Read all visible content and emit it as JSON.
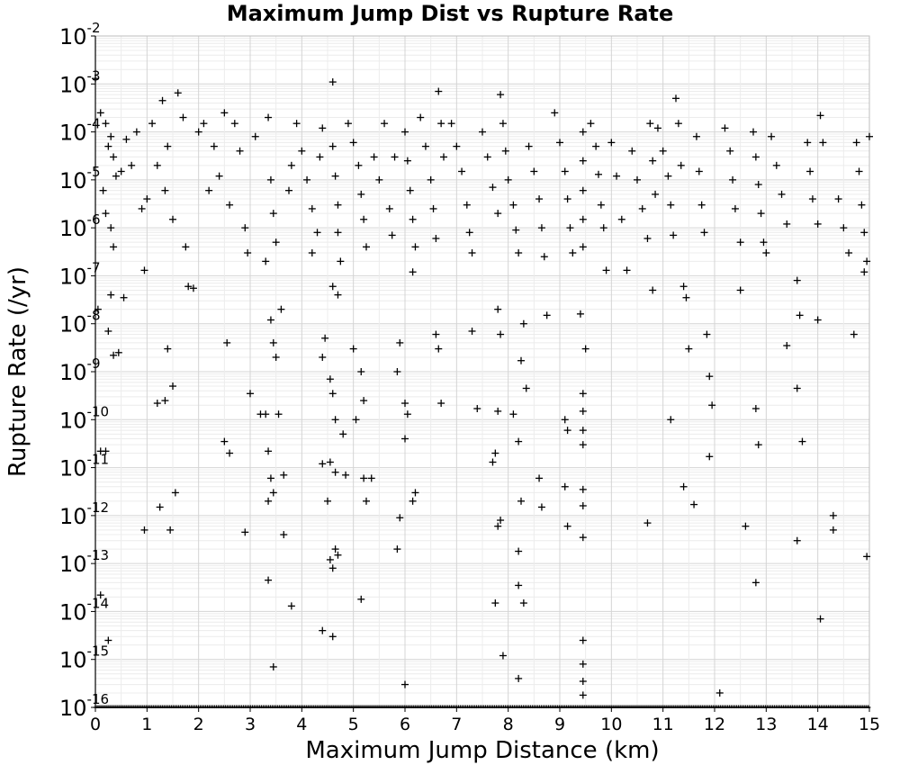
{
  "chart_data": {
    "type": "scatter",
    "title": "Maximum Jump Dist vs Rupture Rate",
    "xlabel": "Maximum Jump Distance (km)",
    "ylabel": "Rupture Rate (/yr)",
    "xlim": [
      0,
      15
    ],
    "ylim": [
      1e-16,
      0.01
    ],
    "yscale": "log",
    "grid": true,
    "marker": "plus",
    "marker_color": "#000000",
    "xticks": [
      "0",
      "1",
      "2",
      "3",
      "4",
      "5",
      "6",
      "7",
      "8",
      "9",
      "10",
      "11",
      "12",
      "13",
      "14",
      "15"
    ],
    "yticks": [
      {
        "base": "10",
        "exp": "-2"
      },
      {
        "base": "10",
        "exp": "-3"
      },
      {
        "base": "10",
        "exp": "-4"
      },
      {
        "base": "10",
        "exp": "-5"
      },
      {
        "base": "10",
        "exp": "-6"
      },
      {
        "base": "10",
        "exp": "-7"
      },
      {
        "base": "10",
        "exp": "-8"
      },
      {
        "base": "10",
        "exp": "-9"
      },
      {
        "base": "10",
        "exp": "-10"
      },
      {
        "base": "10",
        "exp": "-11"
      },
      {
        "base": "10",
        "exp": "-12"
      },
      {
        "base": "10",
        "exp": "-13"
      },
      {
        "base": "10",
        "exp": "-14"
      },
      {
        "base": "10",
        "exp": "-15"
      },
      {
        "base": "10",
        "exp": "-16"
      }
    ],
    "points": [
      [
        0.0,
        0.0013
      ],
      [
        0.1,
        0.00025
      ],
      [
        0.2,
        0.00015
      ],
      [
        0.25,
        5e-05
      ],
      [
        0.3,
        8e-05
      ],
      [
        0.35,
        3e-05
      ],
      [
        0.4,
        1.2e-05
      ],
      [
        0.15,
        6e-06
      ],
      [
        0.2,
        2e-06
      ],
      [
        0.3,
        1e-06
      ],
      [
        0.35,
        4e-07
      ],
      [
        0.05,
        2e-08
      ],
      [
        0.1,
        2.2e-11
      ],
      [
        0.2,
        2.2e-11
      ],
      [
        0.25,
        7e-09
      ],
      [
        0.35,
        2.2e-09
      ],
      [
        0.45,
        2.5e-09
      ],
      [
        0.3,
        4e-08
      ],
      [
        0.55,
        3.5e-08
      ],
      [
        0.1,
        2.2e-14
      ],
      [
        0.25,
        2.5e-15
      ],
      [
        0.5,
        1.5e-05
      ],
      [
        0.6,
        7e-05
      ],
      [
        0.7,
        2e-05
      ],
      [
        0.8,
        0.0001
      ],
      [
        0.9,
        2.5e-06
      ],
      [
        0.95,
        1.3e-07
      ],
      [
        1.0,
        4e-06
      ],
      [
        1.1,
        0.00015
      ],
      [
        1.2,
        2e-05
      ],
      [
        1.3,
        0.00045
      ],
      [
        1.35,
        6e-06
      ],
      [
        1.4,
        5e-05
      ],
      [
        1.5,
        1.5e-06
      ],
      [
        1.6,
        0.00065
      ],
      [
        1.7,
        0.0002
      ],
      [
        1.75,
        4e-07
      ],
      [
        1.8,
        6e-08
      ],
      [
        1.9,
        5.5e-08
      ],
      [
        1.2,
        2.2e-10
      ],
      [
        1.35,
        2.5e-10
      ],
      [
        1.5,
        5e-10
      ],
      [
        1.4,
        3e-09
      ],
      [
        1.25,
        1.5e-12
      ],
      [
        1.45,
        5e-13
      ],
      [
        1.55,
        3e-12
      ],
      [
        0.95,
        5e-13
      ],
      [
        2.0,
        0.0001
      ],
      [
        2.1,
        0.00015
      ],
      [
        2.2,
        6e-06
      ],
      [
        2.3,
        5e-05
      ],
      [
        2.4,
        1.2e-05
      ],
      [
        2.5,
        0.00025
      ],
      [
        2.6,
        3e-06
      ],
      [
        2.7,
        0.00015
      ],
      [
        2.8,
        4e-05
      ],
      [
        2.9,
        1e-06
      ],
      [
        2.95,
        3e-07
      ],
      [
        2.55,
        4e-09
      ],
      [
        2.5,
        3.5e-11
      ],
      [
        2.6,
        2e-11
      ],
      [
        2.9,
        4.5e-13
      ],
      [
        3.0,
        3.5e-10
      ],
      [
        3.1,
        8e-05
      ],
      [
        3.2,
        1.3e-10
      ],
      [
        3.3,
        1.3e-10
      ],
      [
        3.35,
        0.0002
      ],
      [
        3.4,
        1e-05
      ],
      [
        3.45,
        2e-06
      ],
      [
        3.5,
        5e-07
      ],
      [
        3.3,
        2e-07
      ],
      [
        3.4,
        1.2e-08
      ],
      [
        3.45,
        4e-09
      ],
      [
        3.5,
        2e-09
      ],
      [
        3.55,
        1.3e-10
      ],
      [
        3.35,
        2.2e-11
      ],
      [
        3.4,
        6e-12
      ],
      [
        3.45,
        3e-12
      ],
      [
        3.35,
        2e-12
      ],
      [
        3.6,
        2e-08
      ],
      [
        3.65,
        7e-12
      ],
      [
        3.65,
        4e-13
      ],
      [
        3.35,
        4.5e-14
      ],
      [
        3.45,
        7e-16
      ],
      [
        3.8,
        1.3e-14
      ],
      [
        3.75,
        6e-06
      ],
      [
        3.8,
        2e-05
      ],
      [
        3.9,
        0.00015
      ],
      [
        4.0,
        4e-05
      ],
      [
        4.1,
        1e-05
      ],
      [
        4.2,
        2.5e-06
      ],
      [
        4.3,
        8e-07
      ],
      [
        4.2,
        3e-07
      ],
      [
        4.35,
        3e-05
      ],
      [
        4.4,
        0.00012
      ],
      [
        4.45,
        5e-09
      ],
      [
        4.4,
        2e-09
      ],
      [
        4.4,
        1.2e-11
      ],
      [
        4.55,
        1.3e-11
      ],
      [
        4.5,
        2e-12
      ],
      [
        4.55,
        1.2e-13
      ],
      [
        4.6,
        8e-14
      ],
      [
        4.6,
        3e-15
      ],
      [
        4.4,
        4e-15
      ],
      [
        4.6,
        0.0011
      ],
      [
        4.6,
        5e-05
      ],
      [
        4.65,
        1.2e-05
      ],
      [
        4.7,
        3e-06
      ],
      [
        4.7,
        8e-07
      ],
      [
        4.75,
        2e-07
      ],
      [
        4.6,
        6e-08
      ],
      [
        4.7,
        4e-08
      ],
      [
        4.55,
        7e-10
      ],
      [
        4.6,
        3.5e-10
      ],
      [
        4.65,
        1e-10
      ],
      [
        4.8,
        5e-11
      ],
      [
        4.65,
        8e-12
      ],
      [
        4.85,
        7e-12
      ],
      [
        4.65,
        2e-13
      ],
      [
        4.7,
        1.5e-13
      ],
      [
        4.9,
        0.00015
      ],
      [
        5.0,
        6e-05
      ],
      [
        5.1,
        2e-05
      ],
      [
        5.15,
        5e-06
      ],
      [
        5.2,
        1.5e-06
      ],
      [
        5.25,
        4e-07
      ],
      [
        5.0,
        3e-09
      ],
      [
        5.15,
        1e-09
      ],
      [
        5.2,
        2.5e-10
      ],
      [
        5.05,
        1e-10
      ],
      [
        5.2,
        6e-12
      ],
      [
        5.25,
        2e-12
      ],
      [
        5.35,
        6e-12
      ],
      [
        5.15,
        1.8e-14
      ],
      [
        5.4,
        3e-05
      ],
      [
        5.5,
        1e-05
      ],
      [
        5.6,
        0.00015
      ],
      [
        5.7,
        2.5e-06
      ],
      [
        5.75,
        7e-07
      ],
      [
        5.8,
        3e-05
      ],
      [
        5.9,
        4e-09
      ],
      [
        5.85,
        1e-09
      ],
      [
        5.9,
        9e-13
      ],
      [
        5.85,
        2e-13
      ],
      [
        6.0,
        0.0001
      ],
      [
        6.05,
        2.5e-05
      ],
      [
        6.1,
        6e-06
      ],
      [
        6.15,
        1.5e-06
      ],
      [
        6.2,
        4e-07
      ],
      [
        6.15,
        1.2e-07
      ],
      [
        6.0,
        2.2e-10
      ],
      [
        6.05,
        1.3e-10
      ],
      [
        6.0,
        4e-11
      ],
      [
        6.2,
        3e-12
      ],
      [
        6.15,
        2e-12
      ],
      [
        6.0,
        3e-16
      ],
      [
        6.3,
        0.0002
      ],
      [
        6.4,
        5e-05
      ],
      [
        6.5,
        1e-05
      ],
      [
        6.55,
        2.5e-06
      ],
      [
        6.6,
        6e-07
      ],
      [
        6.65,
        0.0007
      ],
      [
        6.7,
        0.00015
      ],
      [
        6.75,
        3e-05
      ],
      [
        6.6,
        6e-09
      ],
      [
        6.65,
        3e-09
      ],
      [
        6.7,
        2.2e-10
      ],
      [
        6.9,
        0.00015
      ],
      [
        7.0,
        5e-05
      ],
      [
        7.1,
        1.5e-05
      ],
      [
        7.2,
        3e-06
      ],
      [
        7.25,
        8e-07
      ],
      [
        7.3,
        3e-07
      ],
      [
        7.3,
        7e-09
      ],
      [
        7.4,
        1.7e-10
      ],
      [
        7.5,
        0.0001
      ],
      [
        7.6,
        3e-05
      ],
      [
        7.7,
        7e-06
      ],
      [
        7.8,
        2e-06
      ],
      [
        7.85,
        0.0006
      ],
      [
        7.9,
        0.00015
      ],
      [
        7.95,
        4e-05
      ],
      [
        7.8,
        2e-08
      ],
      [
        7.85,
        6e-09
      ],
      [
        7.8,
        1.5e-10
      ],
      [
        7.75,
        2e-11
      ],
      [
        7.7,
        1.3e-11
      ],
      [
        7.85,
        8e-13
      ],
      [
        7.8,
        6e-13
      ],
      [
        7.75,
        1.5e-14
      ],
      [
        7.9,
        1.2e-15
      ],
      [
        8.0,
        1e-05
      ],
      [
        8.1,
        3e-06
      ],
      [
        8.15,
        9e-07
      ],
      [
        8.2,
        3e-07
      ],
      [
        8.1,
        1.3e-10
      ],
      [
        8.2,
        3.5e-11
      ],
      [
        8.25,
        2e-12
      ],
      [
        8.2,
        1.8e-13
      ],
      [
        8.2,
        3.5e-14
      ],
      [
        8.3,
        1.5e-14
      ],
      [
        8.2,
        4e-16
      ],
      [
        8.3,
        1e-08
      ],
      [
        8.35,
        4.5e-10
      ],
      [
        8.25,
        1.7e-09
      ],
      [
        8.4,
        5e-05
      ],
      [
        8.5,
        1.5e-05
      ],
      [
        8.6,
        4e-06
      ],
      [
        8.65,
        1e-06
      ],
      [
        8.7,
        2.5e-07
      ],
      [
        8.75,
        1.5e-08
      ],
      [
        8.6,
        6e-12
      ],
      [
        8.65,
        1.5e-12
      ],
      [
        8.9,
        0.00025
      ],
      [
        9.0,
        6e-05
      ],
      [
        9.1,
        1.5e-05
      ],
      [
        9.15,
        4e-06
      ],
      [
        9.2,
        1e-06
      ],
      [
        9.25,
        3e-07
      ],
      [
        9.1,
        1e-10
      ],
      [
        9.15,
        6e-11
      ],
      [
        9.1,
        4e-12
      ],
      [
        9.15,
        6e-13
      ],
      [
        9.4,
        1.6e-08
      ],
      [
        9.45,
        0.0001
      ],
      [
        9.45,
        2.5e-05
      ],
      [
        9.45,
        6e-06
      ],
      [
        9.45,
        1.5e-06
      ],
      [
        9.45,
        4e-07
      ],
      [
        9.45,
        3.5e-10
      ],
      [
        9.45,
        1.5e-10
      ],
      [
        9.45,
        6e-11
      ],
      [
        9.45,
        3e-11
      ],
      [
        9.45,
        3.5e-12
      ],
      [
        9.45,
        1.6e-12
      ],
      [
        9.45,
        3.5e-13
      ],
      [
        9.45,
        2.5e-15
      ],
      [
        9.45,
        8e-16
      ],
      [
        9.45,
        3.5e-16
      ],
      [
        9.45,
        1.8e-16
      ],
      [
        9.5,
        3e-09
      ],
      [
        9.6,
        0.00015
      ],
      [
        9.7,
        5e-05
      ],
      [
        9.75,
        1.3e-05
      ],
      [
        9.8,
        3e-06
      ],
      [
        9.85,
        1e-06
      ],
      [
        9.9,
        1.3e-07
      ],
      [
        10.0,
        6e-05
      ],
      [
        10.1,
        1.2e-05
      ],
      [
        10.2,
        1.5e-06
      ],
      [
        10.3,
        1.3e-07
      ],
      [
        10.4,
        4e-05
      ],
      [
        10.5,
        1e-05
      ],
      [
        10.6,
        2.5e-06
      ],
      [
        10.7,
        6e-07
      ],
      [
        10.75,
        0.00015
      ],
      [
        10.8,
        2.5e-05
      ],
      [
        10.85,
        5e-06
      ],
      [
        10.8,
        5e-08
      ],
      [
        10.7,
        7e-13
      ],
      [
        10.9,
        0.00012
      ],
      [
        11.0,
        4e-05
      ],
      [
        11.1,
        1.2e-05
      ],
      [
        11.15,
        3e-06
      ],
      [
        11.2,
        7e-07
      ],
      [
        11.25,
        0.0005
      ],
      [
        11.3,
        0.00015
      ],
      [
        11.35,
        2e-05
      ],
      [
        11.4,
        6e-08
      ],
      [
        11.45,
        3.5e-08
      ],
      [
        11.15,
        1e-10
      ],
      [
        11.4,
        4e-12
      ],
      [
        11.5,
        3e-09
      ],
      [
        11.6,
        1.7e-12
      ],
      [
        11.65,
        8e-05
      ],
      [
        11.7,
        1.5e-05
      ],
      [
        11.75,
        3e-06
      ],
      [
        11.8,
        8e-07
      ],
      [
        11.85,
        6e-09
      ],
      [
        11.9,
        8e-10
      ],
      [
        11.9,
        1.7e-11
      ],
      [
        11.95,
        2e-10
      ],
      [
        12.1,
        2e-16
      ],
      [
        12.2,
        0.00012
      ],
      [
        12.3,
        4e-05
      ],
      [
        12.35,
        1e-05
      ],
      [
        12.4,
        2.5e-06
      ],
      [
        12.5,
        5e-07
      ],
      [
        12.5,
        5e-08
      ],
      [
        12.6,
        6e-13
      ],
      [
        12.75,
        0.0001
      ],
      [
        12.8,
        3e-05
      ],
      [
        12.85,
        8e-06
      ],
      [
        12.9,
        2e-06
      ],
      [
        12.95,
        5e-07
      ],
      [
        12.8,
        1.7e-10
      ],
      [
        12.85,
        3e-11
      ],
      [
        12.8,
        4e-14
      ],
      [
        13.0,
        3e-07
      ],
      [
        13.1,
        8e-05
      ],
      [
        13.2,
        2e-05
      ],
      [
        13.3,
        5e-06
      ],
      [
        13.4,
        1.2e-06
      ],
      [
        13.4,
        3.5e-09
      ],
      [
        13.6,
        8e-08
      ],
      [
        13.65,
        1.5e-08
      ],
      [
        13.6,
        4.5e-10
      ],
      [
        13.7,
        3.5e-11
      ],
      [
        13.6,
        3e-13
      ],
      [
        13.8,
        6e-05
      ],
      [
        13.85,
        1.5e-05
      ],
      [
        13.9,
        4e-06
      ],
      [
        14.0,
        1.2e-06
      ],
      [
        14.05,
        0.00022
      ],
      [
        14.1,
        6e-05
      ],
      [
        14.0,
        1.2e-08
      ],
      [
        14.05,
        7e-15
      ],
      [
        14.3,
        1e-12
      ],
      [
        14.3,
        5e-13
      ],
      [
        14.4,
        4e-06
      ],
      [
        14.5,
        1e-06
      ],
      [
        14.6,
        3e-07
      ],
      [
        14.7,
        6e-09
      ],
      [
        14.75,
        6e-05
      ],
      [
        14.8,
        1.5e-05
      ],
      [
        14.85,
        3e-06
      ],
      [
        14.9,
        8e-07
      ],
      [
        14.95,
        2e-07
      ],
      [
        14.95,
        1.4e-13
      ],
      [
        15.0,
        8e-05
      ],
      [
        14.9,
        1.2e-07
      ]
    ]
  }
}
